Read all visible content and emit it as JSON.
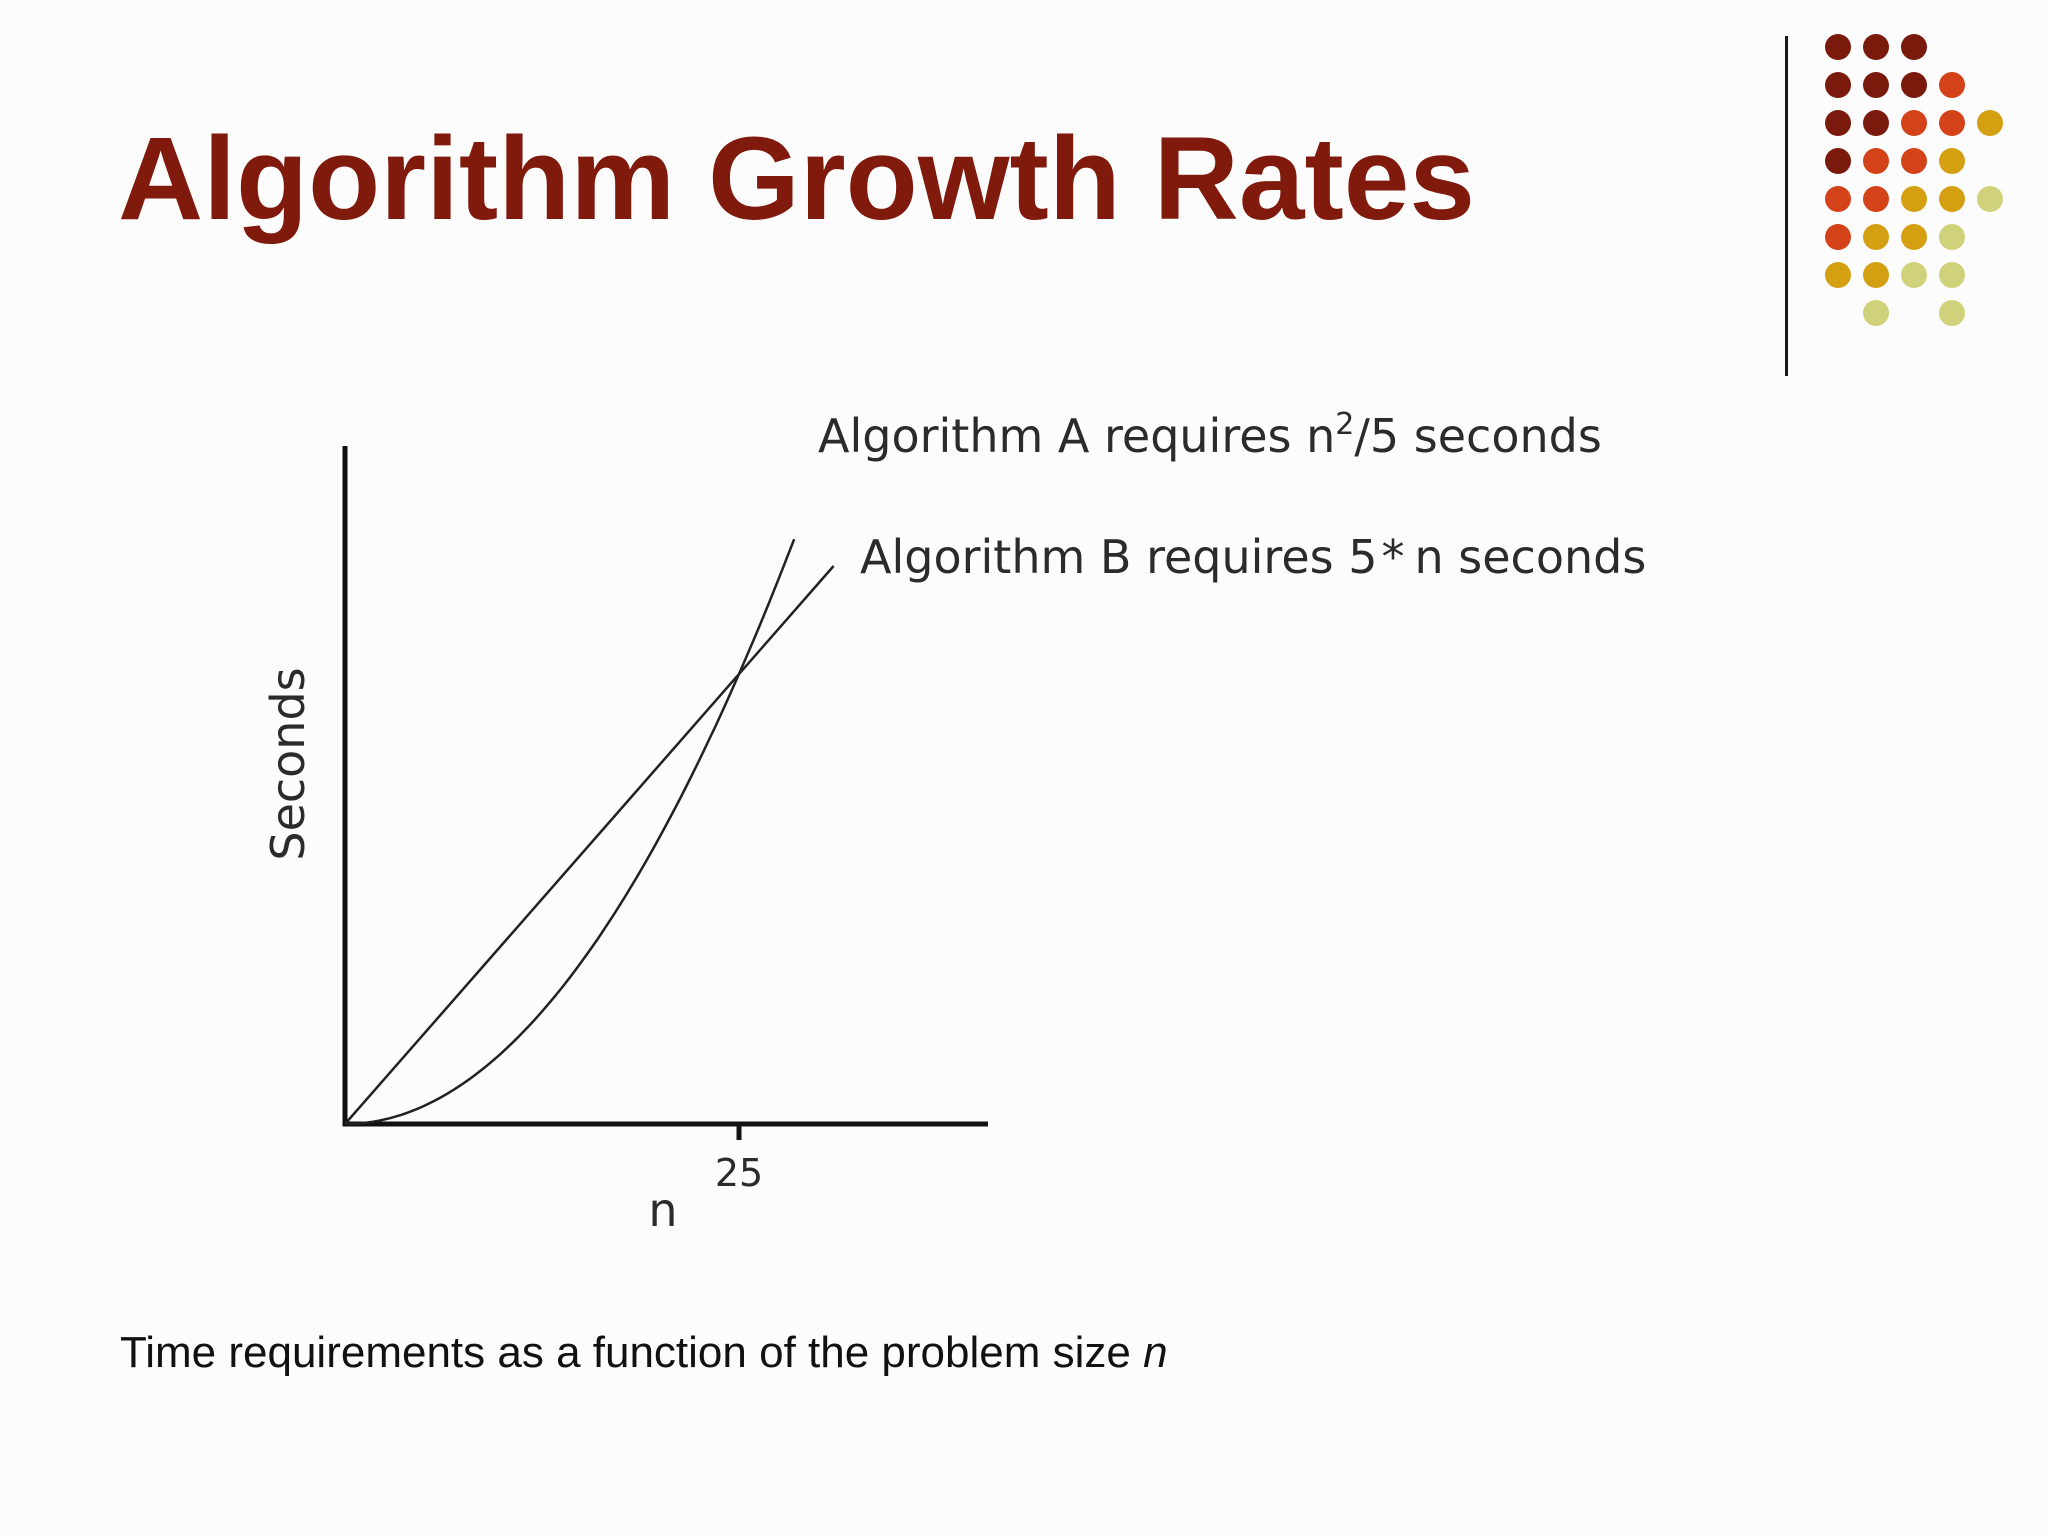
{
  "slide": {
    "title": "Algorithm Growth Rates",
    "caption_text": "Time requirements as a function of the problem size ",
    "caption_var": "n",
    "colors": {
      "title": "#7f1a0c",
      "dot_palette": [
        "#7a1a0c",
        "#d4421a",
        "#d4a012",
        "#cfd27a"
      ]
    }
  },
  "chart_data": {
    "type": "line",
    "ylabel": "Seconds",
    "xlabel": "n",
    "x_ticks": [
      25
    ],
    "x_tick_labels": [
      "25"
    ],
    "xlim": [
      0,
      40
    ],
    "ylim": [
      0,
      188
    ],
    "grid": false,
    "series": [
      {
        "name": "Algorithm A requires n²/5 seconds",
        "label_main": "Algorithm A requires n",
        "label_sup": "2",
        "label_tail": "/5 seconds",
        "formula": "n^2/5",
        "x": [
          0,
          5,
          10,
          15,
          20,
          25,
          28.5
        ],
        "y": [
          0,
          5,
          20,
          45,
          80,
          125,
          162.5
        ]
      },
      {
        "name": "Algorithm B requires 5*n seconds",
        "label_main": "Algorithm B requires 5",
        "label_star": "*",
        "label_tail": "n seconds",
        "formula": "5*n",
        "x": [
          0,
          5,
          10,
          15,
          20,
          25,
          31
        ],
        "y": [
          0,
          25,
          50,
          75,
          100,
          125,
          155
        ]
      }
    ]
  }
}
